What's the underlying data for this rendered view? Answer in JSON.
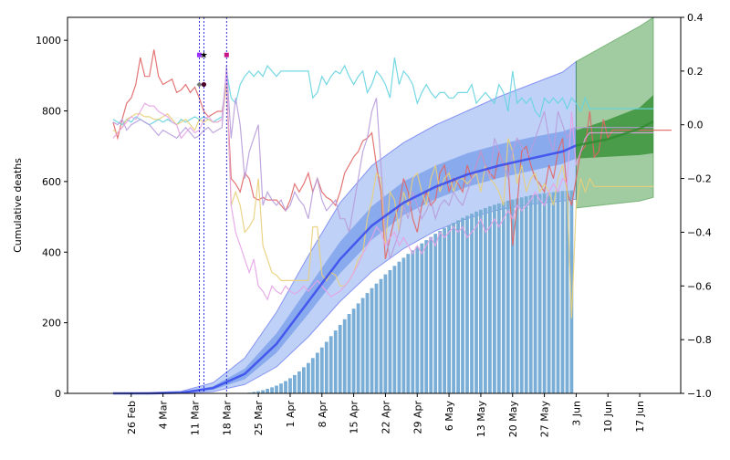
{
  "chart_data": {
    "type": "bar",
    "ylabel": "Cumulative deaths",
    "ylim": [
      0,
      1065
    ],
    "y2lim": [
      -1.0,
      0.4
    ],
    "left_ticks": [
      "0",
      "200",
      "400",
      "600",
      "800",
      "1000"
    ],
    "right_ticks": [
      "−1.0",
      "−0.8",
      "−0.6",
      "−0.4",
      "−0.2",
      "0.0",
      "0.2",
      "0.4"
    ],
    "x_start_date": "2020-02-18",
    "x_end_date": "2020-06-20",
    "x_tick_labels": [
      "26 Feb",
      "4 Mar",
      "11 Mar",
      "18 Mar",
      "25 Mar",
      "1 Apr",
      "8 Apr",
      "15 Apr",
      "22 Apr",
      "29 Apr",
      "6 May",
      "13 May",
      "20 May",
      "27 May",
      "3 Jun",
      "10 Jun",
      "17 Jun"
    ],
    "x_tick_dates": [
      "2020-02-26",
      "2020-03-04",
      "2020-03-11",
      "2020-03-18",
      "2020-03-25",
      "2020-04-01",
      "2020-04-08",
      "2020-04-15",
      "2020-04-22",
      "2020-04-29",
      "2020-05-06",
      "2020-05-13",
      "2020-05-20",
      "2020-05-27",
      "2020-06-03",
      "2020-06-10",
      "2020-06-17"
    ],
    "event_lines": [
      "2020-03-12",
      "2020-03-13",
      "2020-03-18"
    ],
    "event_markers": [
      {
        "date": "2020-03-12",
        "y2": 0.26,
        "color": "#9b30ff",
        "shape": "square"
      },
      {
        "date": "2020-03-13",
        "y2": 0.26,
        "color": "#222222",
        "shape": "star"
      },
      {
        "date": "2020-03-18",
        "y2": 0.26,
        "color": "#c71585",
        "shape": "square"
      },
      {
        "date": "2020-03-12",
        "y2": 0.15,
        "color": "#777777",
        "shape": "diamond"
      },
      {
        "date": "2020-03-13",
        "y2": 0.15,
        "color": "#4b0026",
        "shape": "dot"
      }
    ],
    "bars": {
      "color": "#7aaed6",
      "start_date": "2020-03-22",
      "values": [
        1,
        2,
        4,
        6,
        9,
        13,
        17,
        22,
        28,
        35,
        43,
        52,
        62,
        74,
        86,
        100,
        115,
        130,
        146,
        162,
        178,
        194,
        210,
        225,
        240,
        255,
        270,
        284,
        298,
        311,
        324,
        337,
        349,
        361,
        373,
        384,
        395,
        405,
        415,
        425,
        434,
        443,
        452,
        460,
        468,
        476,
        483,
        490,
        497,
        503,
        509,
        515,
        520,
        525,
        530,
        534,
        538,
        542,
        546,
        549,
        552,
        555,
        558,
        561,
        563,
        565,
        567,
        569,
        570,
        572,
        573,
        574,
        575
      ]
    },
    "model_fit": {
      "color": "#3344ee",
      "band_color": "#5f8be8",
      "x": [
        "2020-02-22",
        "2020-03-01",
        "2020-03-08",
        "2020-03-15",
        "2020-03-22",
        "2020-03-29",
        "2020-04-05",
        "2020-04-12",
        "2020-04-19",
        "2020-04-26",
        "2020-05-03",
        "2020-05-10",
        "2020-05-17",
        "2020-05-24",
        "2020-05-31",
        "2020-06-03"
      ],
      "median": [
        0,
        0,
        2,
        15,
        55,
        140,
        260,
        380,
        475,
        540,
        585,
        620,
        645,
        665,
        685,
        702
      ],
      "inner_lo": [
        0,
        0,
        1,
        10,
        40,
        115,
        225,
        340,
        435,
        505,
        550,
        585,
        610,
        630,
        650,
        665
      ],
      "inner_hi": [
        0,
        1,
        3,
        20,
        70,
        170,
        300,
        430,
        530,
        600,
        645,
        680,
        705,
        725,
        742,
        755
      ],
      "outer_lo": [
        0,
        0,
        1,
        5,
        25,
        75,
        160,
        260,
        345,
        410,
        460,
        495,
        520,
        535,
        545,
        550
      ],
      "outer_hi": [
        0,
        2,
        6,
        30,
        100,
        230,
        390,
        540,
        645,
        710,
        760,
        800,
        840,
        875,
        910,
        940
      ]
    },
    "forecast": {
      "color": "#2e8b2e",
      "x": [
        "2020-06-03",
        "2020-06-10",
        "2020-06-17",
        "2020-06-20"
      ],
      "median": [
        702,
        720,
        750,
        770
      ],
      "inner_lo": [
        665,
        670,
        675,
        680
      ],
      "inner_hi": [
        745,
        775,
        810,
        845
      ],
      "outer_lo": [
        525,
        535,
        545,
        555
      ],
      "outer_hi": [
        940,
        990,
        1040,
        1065
      ]
    },
    "series": [
      {
        "color": "#e06666",
        "start_date": "2020-02-22",
        "values": [
          0.01,
          -0.05,
          0.02,
          0.08,
          0.1,
          0.15,
          0.25,
          0.18,
          0.18,
          0.28,
          0.18,
          0.15,
          0.16,
          0.17,
          0.12,
          0.13,
          0.15,
          0.12,
          0.14,
          0.1,
          0.05,
          0.03,
          0.04,
          0.05,
          0.05,
          0.15,
          -0.2,
          -0.22,
          -0.25,
          -0.18,
          -0.2,
          -0.27,
          -0.28,
          -0.27,
          -0.28,
          -0.28,
          -0.28,
          -0.3,
          -0.32,
          -0.28,
          -0.22,
          -0.25,
          -0.22,
          -0.18,
          -0.25,
          -0.2,
          -0.25,
          -0.27,
          -0.28,
          -0.3,
          -0.25,
          -0.18,
          -0.15,
          -0.12,
          -0.1,
          -0.06,
          -0.05,
          -0.03,
          -0.15,
          -0.25,
          -0.5,
          -0.42,
          -0.35,
          -0.3,
          -0.2,
          -0.25,
          -0.35,
          -0.4,
          -0.3,
          -0.25,
          -0.3,
          -0.28,
          -0.18,
          -0.15,
          -0.25,
          -0.2,
          -0.22,
          -0.25,
          -0.15,
          -0.2,
          -0.15,
          -0.1,
          -0.15,
          -0.18,
          -0.2,
          -0.1,
          -0.15,
          -0.15,
          -0.45,
          -0.3,
          -0.1,
          -0.08,
          -0.15,
          -0.2,
          -0.22,
          -0.25,
          -0.15,
          -0.2,
          -0.1,
          -0.05,
          -0.25,
          -0.3,
          -0.2,
          -0.1,
          -0.08,
          0.05,
          -0.12,
          -0.1,
          0.02,
          -0.05,
          -0.02,
          -0.02,
          -0.02,
          -0.02,
          -0.02,
          -0.02,
          -0.02,
          -0.02,
          -0.02,
          -0.02,
          -0.02,
          -0.02,
          -0.02,
          -0.02
        ]
      },
      {
        "color": "#66d4e0",
        "start_date": "2020-02-22",
        "values": [
          0.02,
          0.01,
          0.0,
          0.02,
          0.01,
          0.03,
          0.02,
          0.01,
          0.0,
          0.01,
          0.02,
          0.01,
          0.02,
          0.01,
          0.0,
          0.02,
          0.01,
          0.02,
          0.03,
          0.02,
          0.03,
          0.02,
          0.01,
          0.02,
          0.03,
          0.2,
          0.1,
          0.08,
          0.15,
          0.18,
          0.2,
          0.18,
          0.2,
          0.18,
          0.22,
          0.2,
          0.18,
          0.2,
          0.2,
          0.2,
          0.2,
          0.2,
          0.2,
          0.2,
          0.1,
          0.12,
          0.18,
          0.15,
          0.18,
          0.2,
          0.19,
          0.22,
          0.18,
          0.15,
          0.18,
          0.2,
          0.12,
          0.15,
          0.2,
          0.18,
          0.15,
          0.1,
          0.25,
          0.15,
          0.2,
          0.18,
          0.15,
          0.08,
          0.12,
          0.15,
          0.12,
          0.1,
          0.12,
          0.12,
          0.1,
          0.1,
          0.12,
          0.12,
          0.12,
          0.15,
          0.08,
          0.1,
          0.12,
          0.1,
          0.08,
          0.15,
          0.12,
          0.05,
          0.2,
          0.08,
          0.1,
          0.08,
          0.1,
          0.05,
          0.03,
          0.1,
          0.08,
          0.1,
          0.08,
          0.1,
          0.06,
          0.1,
          0.08,
          0.05,
          0.1,
          0.06,
          0.06,
          0.06,
          0.06,
          0.06,
          0.06,
          0.06,
          0.06,
          0.06,
          0.06,
          0.06,
          0.06,
          0.06,
          0.06,
          0.06
        ]
      },
      {
        "color": "#e8cf7a",
        "start_date": "2020-02-22",
        "values": [
          -0.02,
          -0.03,
          -0.01,
          0.02,
          0.03,
          0.04,
          0.04,
          0.03,
          0.03,
          0.02,
          0.02,
          0.03,
          0.04,
          0.02,
          0.0,
          0.01,
          0.02,
          0.0,
          -0.02,
          0.02,
          0.01,
          0.02,
          0.01,
          0.01,
          0.02,
          0.15,
          -0.3,
          -0.25,
          -0.3,
          -0.4,
          -0.38,
          -0.35,
          -0.2,
          -0.45,
          -0.5,
          -0.55,
          -0.56,
          -0.58,
          -0.58,
          -0.58,
          -0.58,
          -0.58,
          -0.58,
          -0.58,
          -0.38,
          -0.38,
          -0.56,
          -0.58,
          -0.55,
          -0.56,
          -0.6,
          -0.6,
          -0.58,
          -0.55,
          -0.5,
          -0.48,
          -0.35,
          -0.28,
          -0.18,
          -0.2,
          -0.45,
          -0.25,
          -0.28,
          -0.4,
          -0.25,
          -0.3,
          -0.2,
          -0.18,
          -0.25,
          -0.3,
          -0.2,
          -0.15,
          -0.25,
          -0.2,
          -0.18,
          -0.25,
          -0.2,
          -0.2,
          -0.22,
          -0.2,
          -0.18,
          -0.25,
          -0.15,
          -0.2,
          -0.22,
          -0.25,
          -0.3,
          -0.05,
          -0.1,
          -0.22,
          -0.15,
          -0.25,
          -0.2,
          -0.18,
          -0.25,
          -0.22,
          -0.25,
          -0.3,
          -0.2,
          -0.15,
          -0.25,
          -0.72,
          -0.3,
          -0.2,
          -0.25,
          -0.2,
          -0.23,
          -0.23,
          -0.23,
          -0.23,
          -0.23,
          -0.23,
          -0.23,
          -0.23,
          -0.23,
          -0.23,
          -0.23,
          -0.23,
          -0.23,
          -0.23
        ]
      },
      {
        "color": "#b89ddb",
        "start_date": "2020-02-22",
        "values": [
          0.01,
          0.0,
          0.02,
          -0.02,
          0.0,
          0.01,
          0.02,
          0.01,
          0.0,
          -0.02,
          -0.04,
          -0.02,
          -0.03,
          -0.04,
          -0.05,
          -0.03,
          -0.01,
          -0.03,
          -0.05,
          -0.04,
          -0.02,
          -0.01,
          -0.03,
          -0.02,
          -0.01,
          0.22,
          -0.05,
          0.1,
          0.0,
          -0.2,
          -0.1,
          -0.05,
          0.0,
          -0.3,
          -0.25,
          -0.28,
          -0.3,
          -0.28,
          -0.32,
          -0.3,
          -0.25,
          -0.28,
          -0.3,
          -0.35,
          -0.25,
          -0.2,
          -0.28,
          -0.32,
          -0.3,
          -0.28,
          -0.35,
          -0.35,
          -0.4,
          -0.3,
          -0.2,
          -0.1,
          -0.05,
          0.05,
          0.1,
          -0.15,
          -0.4,
          -0.5,
          -0.45,
          -0.4,
          -0.3,
          -0.35,
          -0.25,
          -0.3,
          -0.35,
          -0.32,
          -0.28,
          -0.35,
          -0.3,
          -0.28,
          -0.3,
          -0.25,
          -0.28,
          -0.3,
          -0.25,
          -0.2,
          -0.15,
          -0.1,
          -0.15,
          -0.2,
          -0.05,
          -0.1,
          -0.15,
          -0.2,
          -0.1,
          -0.05,
          -0.08,
          -0.12,
          -0.1,
          -0.05,
          0.0,
          0.05,
          -0.05,
          -0.1,
          0.05,
          0.0,
          -0.05,
          -0.02,
          -0.01,
          -0.01,
          -0.01,
          -0.01,
          -0.01,
          -0.01,
          -0.01,
          -0.01,
          -0.01,
          -0.01,
          -0.01,
          -0.01,
          -0.01,
          -0.01,
          -0.01,
          -0.01,
          -0.01,
          -0.01
        ]
      },
      {
        "color": "#e6a3e6",
        "start_date": "2020-02-22",
        "values": [
          -0.05,
          -0.03,
          -0.01,
          0.01,
          0.03,
          0.02,
          0.05,
          0.08,
          0.07,
          0.07,
          0.05,
          0.04,
          0.03,
          0.01,
          0.0,
          -0.05,
          -0.03,
          -0.01,
          -0.03,
          -0.02,
          0.02,
          0.03,
          0.01,
          0.01,
          0.02,
          0.2,
          -0.3,
          -0.4,
          -0.45,
          -0.5,
          -0.55,
          -0.5,
          -0.6,
          -0.62,
          -0.65,
          -0.6,
          -0.62,
          -0.63,
          -0.6,
          -0.62,
          -0.63,
          -0.62,
          -0.6,
          -0.62,
          -0.6,
          -0.58,
          -0.6,
          -0.62,
          -0.64,
          -0.63,
          -0.62,
          -0.6,
          -0.58,
          -0.55,
          -0.52,
          -0.48,
          -0.45,
          -0.42,
          -0.38,
          -0.4,
          -0.45,
          -0.42,
          -0.4,
          -0.45,
          -0.42,
          -0.45,
          -0.48,
          -0.45,
          -0.48,
          -0.45,
          -0.42,
          -0.45,
          -0.4,
          -0.42,
          -0.4,
          -0.38,
          -0.4,
          -0.38,
          -0.42,
          -0.4,
          -0.38,
          -0.35,
          -0.4,
          -0.38,
          -0.35,
          -0.38,
          -0.35,
          -0.32,
          -0.35,
          -0.3,
          -0.32,
          -0.3,
          -0.28,
          -0.25,
          -0.28,
          -0.3,
          -0.25,
          -0.22,
          -0.25,
          -0.2,
          -0.22,
          0.05,
          -0.15,
          -0.1,
          -0.05,
          -0.03,
          -0.03,
          -0.03,
          -0.03,
          -0.03,
          -0.03,
          -0.03,
          -0.03,
          -0.03,
          -0.03,
          -0.03,
          -0.03,
          -0.03,
          -0.03,
          -0.03
        ]
      }
    ]
  }
}
